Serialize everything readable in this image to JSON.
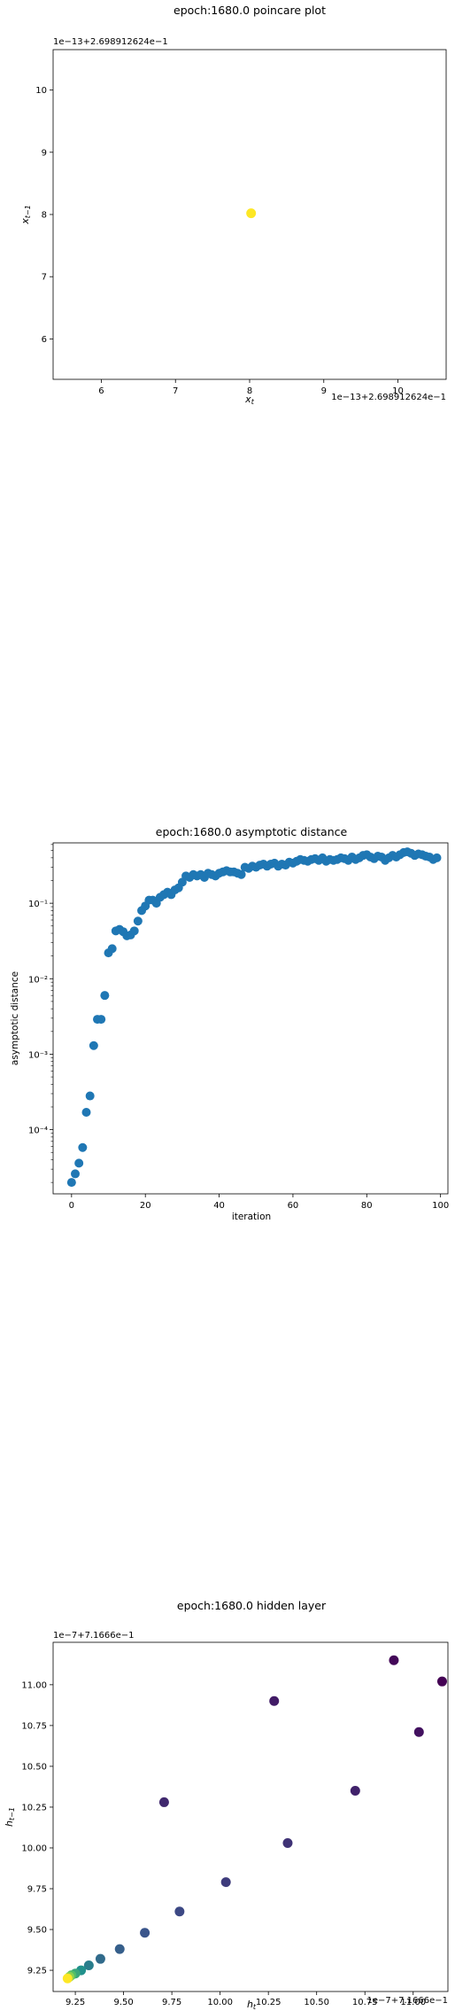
{
  "chart_data": [
    {
      "type": "scatter",
      "title": "epoch:1680.0 poincare plot",
      "xlabel": "x_t",
      "ylabel": "x_{t-1}",
      "x_offset_text": "1e−13+2.698912624e−1",
      "y_offset_text": "1e−13+2.698912624e−1",
      "xlim": [
        5.35,
        10.65
      ],
      "ylim": [
        5.35,
        10.65
      ],
      "xticks": [
        6,
        7,
        8,
        9,
        10
      ],
      "yticks": [
        6,
        7,
        8,
        9,
        10
      ],
      "points": [
        {
          "x": 8.02,
          "y": 8.02
        }
      ],
      "colors": {
        "point": "#fde725"
      },
      "grid": false
    },
    {
      "type": "scatter",
      "title": "epoch:1680.0 asymptotic distance",
      "xlabel": "iteration",
      "ylabel": "asymptotic distance",
      "xlim": [
        -5,
        102
      ],
      "ylim_log10": [
        -4.85,
        -0.2
      ],
      "xticks": [
        0,
        20,
        40,
        60,
        80,
        100
      ],
      "yticks": [
        {
          "exp": -4,
          "label": "10⁻⁴"
        },
        {
          "exp": -3,
          "label": "10⁻³"
        },
        {
          "exp": -2,
          "label": "10⁻²"
        },
        {
          "exp": -1,
          "label": "10⁻¹"
        }
      ],
      "y_scale": "log",
      "x": [
        0,
        1,
        2,
        3,
        4,
        5,
        6,
        7,
        8,
        9,
        10,
        11,
        12,
        13,
        14,
        15,
        16,
        17,
        18,
        19,
        20,
        21,
        22,
        23,
        24,
        25,
        26,
        27,
        28,
        29,
        30,
        31,
        32,
        33,
        34,
        35,
        36,
        37,
        38,
        39,
        40,
        41,
        42,
        43,
        44,
        45,
        46,
        47,
        48,
        49,
        50,
        51,
        52,
        53,
        54,
        55,
        56,
        57,
        58,
        59,
        60,
        61,
        62,
        63,
        64,
        65,
        66,
        67,
        68,
        69,
        70,
        71,
        72,
        73,
        74,
        75,
        76,
        77,
        78,
        79,
        80,
        81,
        82,
        83,
        84,
        85,
        86,
        87,
        88,
        89,
        90,
        91,
        92,
        93,
        94,
        95,
        96,
        97,
        98,
        99
      ],
      "y": [
        2e-05,
        2.6e-05,
        3.6e-05,
        5.8e-05,
        0.00017,
        0.00028,
        0.0013,
        0.0029,
        0.0029,
        0.006,
        0.022,
        0.025,
        0.043,
        0.045,
        0.042,
        0.037,
        0.038,
        0.043,
        0.058,
        0.08,
        0.092,
        0.11,
        0.11,
        0.1,
        0.12,
        0.13,
        0.14,
        0.13,
        0.15,
        0.16,
        0.19,
        0.23,
        0.22,
        0.24,
        0.23,
        0.24,
        0.22,
        0.25,
        0.24,
        0.23,
        0.25,
        0.26,
        0.27,
        0.26,
        0.26,
        0.25,
        0.24,
        0.3,
        0.29,
        0.31,
        0.3,
        0.32,
        0.33,
        0.31,
        0.33,
        0.34,
        0.31,
        0.33,
        0.32,
        0.35,
        0.34,
        0.36,
        0.38,
        0.37,
        0.36,
        0.38,
        0.39,
        0.37,
        0.4,
        0.36,
        0.38,
        0.37,
        0.38,
        0.4,
        0.39,
        0.37,
        0.41,
        0.38,
        0.4,
        0.43,
        0.44,
        0.41,
        0.39,
        0.42,
        0.41,
        0.37,
        0.4,
        0.43,
        0.41,
        0.44,
        0.47,
        0.48,
        0.46,
        0.43,
        0.45,
        0.44,
        0.42,
        0.41,
        0.38,
        0.4
      ],
      "colors": {
        "point": "#1f77b4"
      },
      "grid": false
    },
    {
      "type": "scatter",
      "title": "epoch:1680.0 hidden layer",
      "xlabel": "h_t",
      "ylabel": "h_{t-1}",
      "x_offset_text": "1e−7+7.1666e−1",
      "y_offset_text": "1e−7+7.1666e−1",
      "xlim": [
        9.135,
        11.18
      ],
      "ylim": [
        9.12,
        11.26
      ],
      "xticks": [
        9.25,
        9.5,
        9.75,
        10.0,
        10.25,
        10.5,
        10.75,
        11.0
      ],
      "xtick_labels": [
        "9.25",
        "9.50",
        "9.75",
        "10.00",
        "10.25",
        "10.50",
        "10.75",
        "11.00"
      ],
      "yticks": [
        9.25,
        9.5,
        9.75,
        10.0,
        10.25,
        10.5,
        10.75,
        11.0
      ],
      "ytick_labels": [
        "9.25",
        "9.50",
        "9.75",
        "10.00",
        "10.25",
        "10.50",
        "10.75",
        "11.00"
      ],
      "points": [
        {
          "x": 11.15,
          "y": 11.02,
          "c": 0.0
        },
        {
          "x": 10.9,
          "y": 11.15,
          "c": 0.02
        },
        {
          "x": 11.03,
          "y": 10.71,
          "c": 0.05
        },
        {
          "x": 10.28,
          "y": 10.9,
          "c": 0.08
        },
        {
          "x": 10.7,
          "y": 10.35,
          "c": 0.1
        },
        {
          "x": 9.71,
          "y": 10.28,
          "c": 0.12
        },
        {
          "x": 10.35,
          "y": 10.03,
          "c": 0.15
        },
        {
          "x": 10.03,
          "y": 9.79,
          "c": 0.18
        },
        {
          "x": 9.79,
          "y": 9.61,
          "c": 0.22
        },
        {
          "x": 9.61,
          "y": 9.48,
          "c": 0.26
        },
        {
          "x": 9.48,
          "y": 9.38,
          "c": 0.3
        },
        {
          "x": 9.38,
          "y": 9.32,
          "c": 0.35
        },
        {
          "x": 9.32,
          "y": 9.28,
          "c": 0.42
        },
        {
          "x": 9.28,
          "y": 9.25,
          "c": 0.5
        },
        {
          "x": 9.25,
          "y": 9.23,
          "c": 0.6
        },
        {
          "x": 9.23,
          "y": 9.22,
          "c": 0.7
        },
        {
          "x": 9.22,
          "y": 9.21,
          "c": 0.82
        },
        {
          "x": 9.21,
          "y": 9.2,
          "c": 1.0
        }
      ],
      "colormap": "viridis",
      "grid": false
    }
  ]
}
